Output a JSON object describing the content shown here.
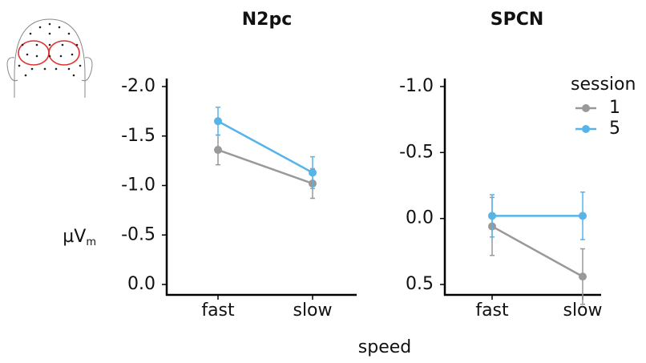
{
  "chart_data": [
    {
      "type": "line",
      "title": "N2pc",
      "categories": [
        "fast",
        "slow"
      ],
      "series": [
        {
          "name": "1",
          "color": "#999999",
          "values": [
            -1.36,
            -1.02
          ],
          "errors": [
            0.15,
            0.15
          ]
        },
        {
          "name": "5",
          "color": "#56B4E9",
          "values": [
            -1.65,
            -1.13
          ],
          "errors": [
            0.14,
            0.16
          ]
        }
      ],
      "ylim": [
        -2.0,
        0.0
      ],
      "reverse_y": true,
      "yticks": [
        {
          "value": -2,
          "label": "-2.0"
        },
        {
          "value": -1.5,
          "label": "-1.5"
        },
        {
          "value": -1,
          "label": "-1.0"
        },
        {
          "value": -0.5,
          "label": "-0.5"
        },
        {
          "value": 0,
          "label": "0.0"
        }
      ],
      "ylabel": "µV",
      "ylabel_sub": "m"
    },
    {
      "type": "line",
      "title": "SPCN",
      "categories": [
        "fast",
        "slow"
      ],
      "series": [
        {
          "name": "1",
          "color": "#999999",
          "values": [
            0.06,
            0.44
          ],
          "errors": [
            0.22,
            0.21
          ]
        },
        {
          "name": "5",
          "color": "#56B4E9",
          "values": [
            -0.02,
            -0.02
          ],
          "errors": [
            0.16,
            0.18
          ]
        }
      ],
      "ylim": [
        -1.0,
        0.5
      ],
      "reverse_y": true,
      "yticks": [
        {
          "value": -1,
          "label": "-1.0"
        },
        {
          "value": -0.5,
          "label": "-0.5"
        },
        {
          "value": 0,
          "label": "0.0"
        },
        {
          "value": 0.5,
          "label": "0.5"
        }
      ],
      "xlabel": "speed",
      "legend_title": "session",
      "legend": "top-right"
    }
  ]
}
